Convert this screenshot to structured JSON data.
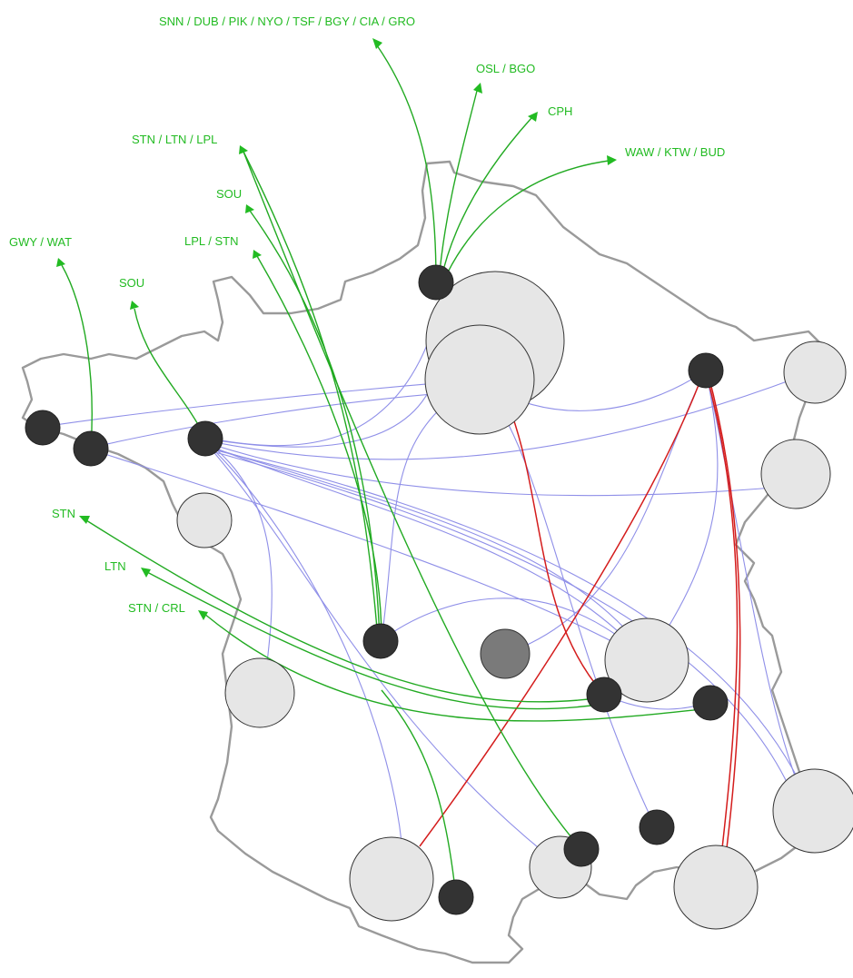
{
  "map": {
    "outline_color": "#9a9a9a",
    "domestic_route_color": "#8f8fe8",
    "highlight_route_color": "#d41c1c",
    "international_route_color": "#22aa22",
    "label_color": "#22bb22"
  },
  "destination_labels": [
    {
      "id": "paris-north",
      "text": "SNN / DUB / PIK / NYO / TSF / BGY / CIA / GRO"
    },
    {
      "id": "oslo-bergen",
      "text": "OSL / BGO"
    },
    {
      "id": "copenhagen",
      "text": "CPH"
    },
    {
      "id": "east-europe",
      "text": "WAW / KTW / BUD"
    },
    {
      "id": "uk-1",
      "text": "STN / LTN / LPL"
    },
    {
      "id": "sou-1",
      "text": "SOU"
    },
    {
      "id": "lpl-stn",
      "text": "LPL / STN"
    },
    {
      "id": "ireland",
      "text": "GWY / WAT"
    },
    {
      "id": "sou-2",
      "text": "SOU"
    },
    {
      "id": "stn",
      "text": "STN"
    },
    {
      "id": "ltn",
      "text": "LTN"
    },
    {
      "id": "stn-crl",
      "text": "STN / CRL"
    }
  ]
}
